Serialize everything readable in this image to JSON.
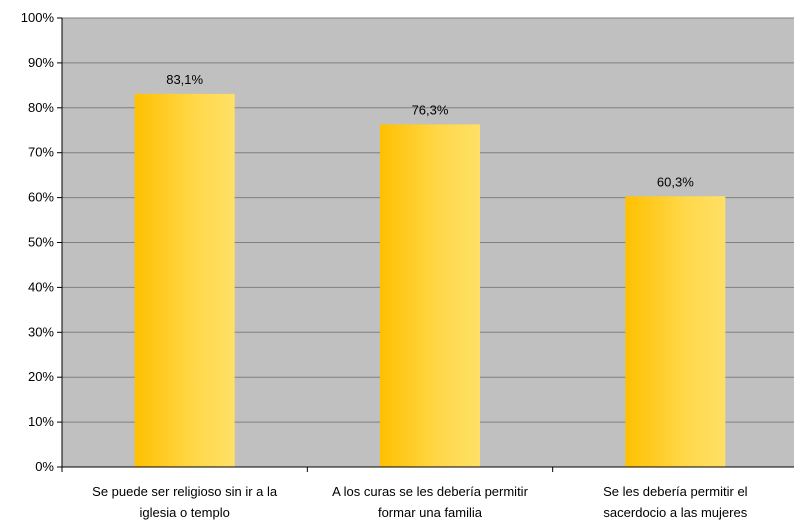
{
  "chart_data": {
    "type": "bar",
    "categories": [
      [
        "Se puede ser religioso sin ir a la",
        "iglesia o templo"
      ],
      [
        "A los curas se les debería permitir",
        "formar una familia"
      ],
      [
        "Se les debería permitir el",
        "sacerdocio a las mujeres"
      ]
    ],
    "values": [
      83.1,
      76.3,
      60.3
    ],
    "data_labels": [
      "83,1%",
      "76,3%",
      "60,3%"
    ],
    "ylim": [
      0,
      100
    ],
    "yticks": [
      0,
      10,
      20,
      30,
      40,
      50,
      60,
      70,
      80,
      90,
      100
    ],
    "ytick_labels": [
      "0%",
      "10%",
      "20%",
      "30%",
      "40%",
      "50%",
      "60%",
      "70%",
      "80%",
      "90%",
      "100%"
    ],
    "grid": true,
    "legend": "none",
    "colors": {
      "plot_background": "#c0c0c0",
      "gridline": "#808080",
      "bar_dark": "#ffc000",
      "bar_light": "#ffe066"
    }
  }
}
